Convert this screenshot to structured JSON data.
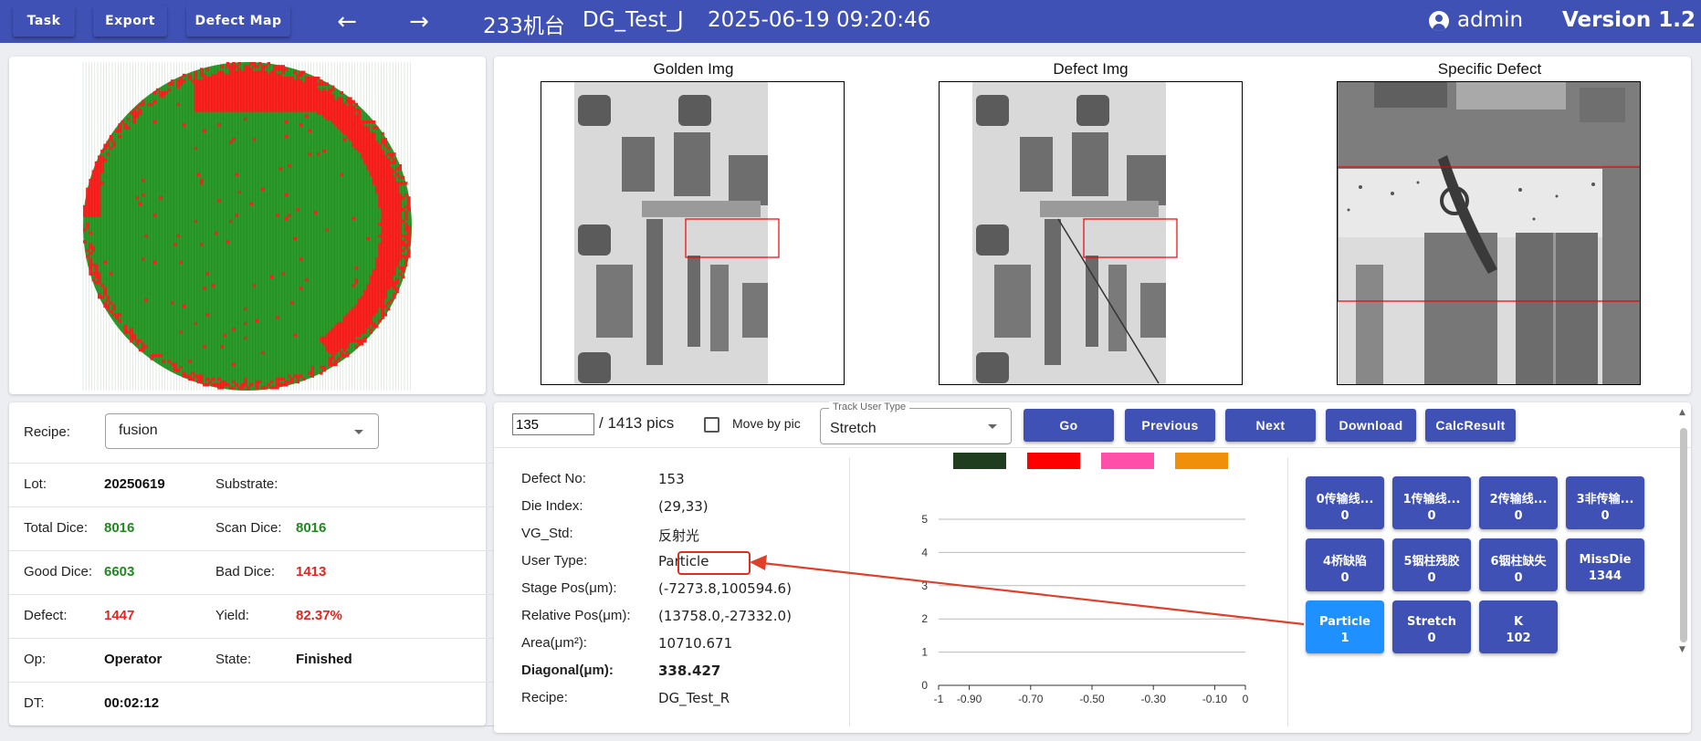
{
  "topbar": {
    "task_label": "Task",
    "export_label": "Export",
    "defect_map_label": "Defect Map",
    "back_icon": "arrow-left-icon",
    "forward_icon": "arrow-right-icon",
    "machine": "233机台",
    "job": "DG_Test_J",
    "datetime": "2025-06-19 09:20:46",
    "user": "admin",
    "version": "Version 1.2"
  },
  "wafer": {
    "colors": {
      "good": "#2a9a2a",
      "bad": "#ff1f1f"
    }
  },
  "images": {
    "golden_title": "Golden Img",
    "defect_title": "Defect Img",
    "specific_title": "Specific Defect"
  },
  "info": {
    "recipe_label": "Recipe:",
    "recipe_value": "fusion",
    "lot_label": "Lot:",
    "lot_value": "20250619",
    "substrate_label": "Substrate:",
    "substrate_value": "",
    "total_dice_label": "Total Dice:",
    "total_dice_value": "8016",
    "scan_dice_label": "Scan Dice:",
    "scan_dice_value": "8016",
    "good_dice_label": "Good Dice:",
    "good_dice_value": "6603",
    "bad_dice_label": "Bad Dice:",
    "bad_dice_value": "1413",
    "defect_label": "Defect:",
    "defect_value": "1447",
    "yield_label": "Yield:",
    "yield_value": "82.37%",
    "op_label": "Op:",
    "op_value": "Operator",
    "state_label": "State:",
    "state_value": "Finished",
    "dt_label": "DT:",
    "dt_value": "00:02:12"
  },
  "toolbar": {
    "pic_value": "135",
    "pic_total": "/ 1413 pics",
    "move_by_pic_label": "Move by pic",
    "track_user_type_label": "Track User Type",
    "track_user_type_value": "Stretch",
    "go_label": "Go",
    "previous_label": "Previous",
    "next_label": "Next",
    "download_label": "Download",
    "calc_result_label": "CalcResult"
  },
  "defect": {
    "rows": [
      {
        "label": "Defect No:",
        "value": "153"
      },
      {
        "label": "Die Index:",
        "value": "(29,33)"
      },
      {
        "label": "VG_Std:",
        "value": "反射光"
      },
      {
        "label": "User Type:",
        "value": "Particle"
      },
      {
        "label": "Stage Pos(μm):",
        "value": "(-7273.8,100594.6)"
      },
      {
        "label": "Relative Pos(μm):",
        "value": "(13758.0,-27332.0)"
      },
      {
        "label": "Area(μm²):",
        "value": "10710.671"
      },
      {
        "label": "Diagonal(μm):",
        "value": "338.427"
      },
      {
        "label": "Recipe:",
        "value": "DG_Test_R"
      }
    ]
  },
  "chart_data": {
    "type": "line",
    "series": [
      {
        "color": "#1f3d1f",
        "values": []
      },
      {
        "color": "#ff0000",
        "values": []
      },
      {
        "color": "#ff4fa8",
        "values": []
      },
      {
        "color": "#f0900a",
        "values": []
      }
    ],
    "xlim": [
      -1,
      0
    ],
    "ylim": [
      0,
      5
    ],
    "x_ticks": [
      "-1",
      "-0.90",
      "-0.70",
      "-0.50",
      "-0.30",
      "-0.10",
      "0"
    ],
    "x_tick_values": [
      -1,
      -0.9,
      -0.7,
      -0.5,
      -0.3,
      -0.1,
      0
    ],
    "y_ticks": [
      "0",
      "1",
      "2",
      "3",
      "4",
      "5"
    ],
    "grid": true
  },
  "categories": [
    {
      "name": "0传输线...",
      "count": "0"
    },
    {
      "name": "1传输线...",
      "count": "0"
    },
    {
      "name": "2传输线...",
      "count": "0"
    },
    {
      "name": "3非传输...",
      "count": "0"
    },
    {
      "name": "4桥缺陷",
      "count": "0"
    },
    {
      "name": "5铟柱残胶",
      "count": "0"
    },
    {
      "name": "6铟柱缺失",
      "count": "0"
    },
    {
      "name": "MissDie",
      "count": "1344"
    },
    {
      "name": "Particle",
      "count": "1"
    },
    {
      "name": "Stretch",
      "count": "0"
    },
    {
      "name": "K",
      "count": "102"
    }
  ]
}
